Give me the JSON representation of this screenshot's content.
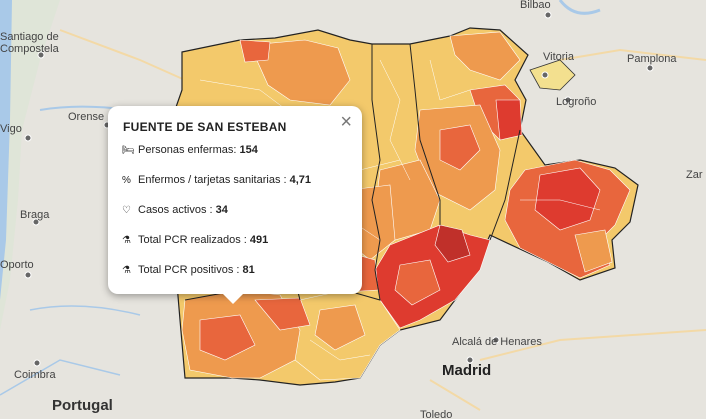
{
  "map": {
    "labels": {
      "bilbao": "Bilbao",
      "santiago1": "Santiago de",
      "santiago2": "Compostela",
      "vitoria": "Vitoria",
      "pamplona": "Pamplona",
      "orense": "Orense",
      "vigo": "Vigo",
      "logrono": "Logroño",
      "braga": "Braga",
      "porto": "Oporto",
      "zara": "Zar",
      "alcala": "Alcalá de Henares",
      "coimbra": "Coimbra",
      "madrid": "Madrid",
      "portugal": "Portugal",
      "toledo": "Toledo"
    }
  },
  "popup": {
    "title": "FUENTE DE SAN ESTEBAN",
    "close_symbol": "×",
    "rows": [
      {
        "icon": "bed-icon",
        "glyph": "🛏",
        "label": "Personas enfermas: ",
        "value": "154"
      },
      {
        "icon": "percent-icon",
        "glyph": "%",
        "label": "Enfermos / tarjetas sanitarias : ",
        "value": "4,71"
      },
      {
        "icon": "heartbeat-icon",
        "glyph": "♡",
        "label": "Casos activos : ",
        "value": "34"
      },
      {
        "icon": "flask-icon",
        "glyph": "⚗",
        "label": "Total PCR realizados : ",
        "value": "491"
      },
      {
        "icon": "flask-icon",
        "glyph": "⚗",
        "label": "Total PCR positivos : ",
        "value": "81"
      }
    ]
  },
  "colors": {
    "low": "#f3c96b",
    "mid": "#ee9a4e",
    "high": "#e8663d",
    "very_high": "#de3b2f",
    "background": "#e8e6e1",
    "water": "#a9c9e8"
  }
}
